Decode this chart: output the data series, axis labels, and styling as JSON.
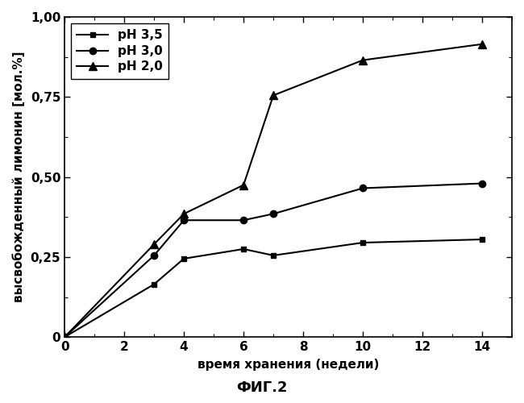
{
  "title": "ФИГ.2",
  "xlabel": "время хранения (недели)",
  "ylabel": "высвобожденный лимонин [мол.%]",
  "xlim": [
    0,
    15
  ],
  "ylim": [
    0,
    1.0
  ],
  "xticks": [
    0,
    2,
    4,
    6,
    8,
    10,
    12,
    14
  ],
  "yticks": [
    0,
    0.25,
    0.5,
    0.75,
    1.0
  ],
  "ytick_labels": [
    "0",
    "0,25",
    "0,50",
    "0,75",
    "1,00"
  ],
  "series": [
    {
      "label": "pH 3,5",
      "x": [
        0,
        3,
        4,
        6,
        7,
        10,
        14
      ],
      "y": [
        0,
        0.165,
        0.245,
        0.275,
        0.255,
        0.295,
        0.305
      ],
      "marker": "s",
      "color": "#000000",
      "linestyle": "-",
      "linewidth": 1.5,
      "markersize": 5
    },
    {
      "label": "pH 3,0",
      "x": [
        0,
        3,
        4,
        6,
        7,
        10,
        14
      ],
      "y": [
        0,
        0.255,
        0.365,
        0.365,
        0.385,
        0.465,
        0.48
      ],
      "marker": "o",
      "color": "#000000",
      "linestyle": "-",
      "linewidth": 1.5,
      "markersize": 6
    },
    {
      "label": "pH 2,0",
      "x": [
        0,
        3,
        4,
        6,
        7,
        10,
        14
      ],
      "y": [
        0,
        0.29,
        0.385,
        0.475,
        0.755,
        0.865,
        0.915
      ],
      "marker": "^",
      "color": "#000000",
      "linestyle": "-",
      "linewidth": 1.5,
      "markersize": 7
    }
  ],
  "legend_loc": "upper left",
  "background_color": "#ffffff",
  "figure_width": 6.5,
  "figure_height": 5.0,
  "dpi": 100
}
